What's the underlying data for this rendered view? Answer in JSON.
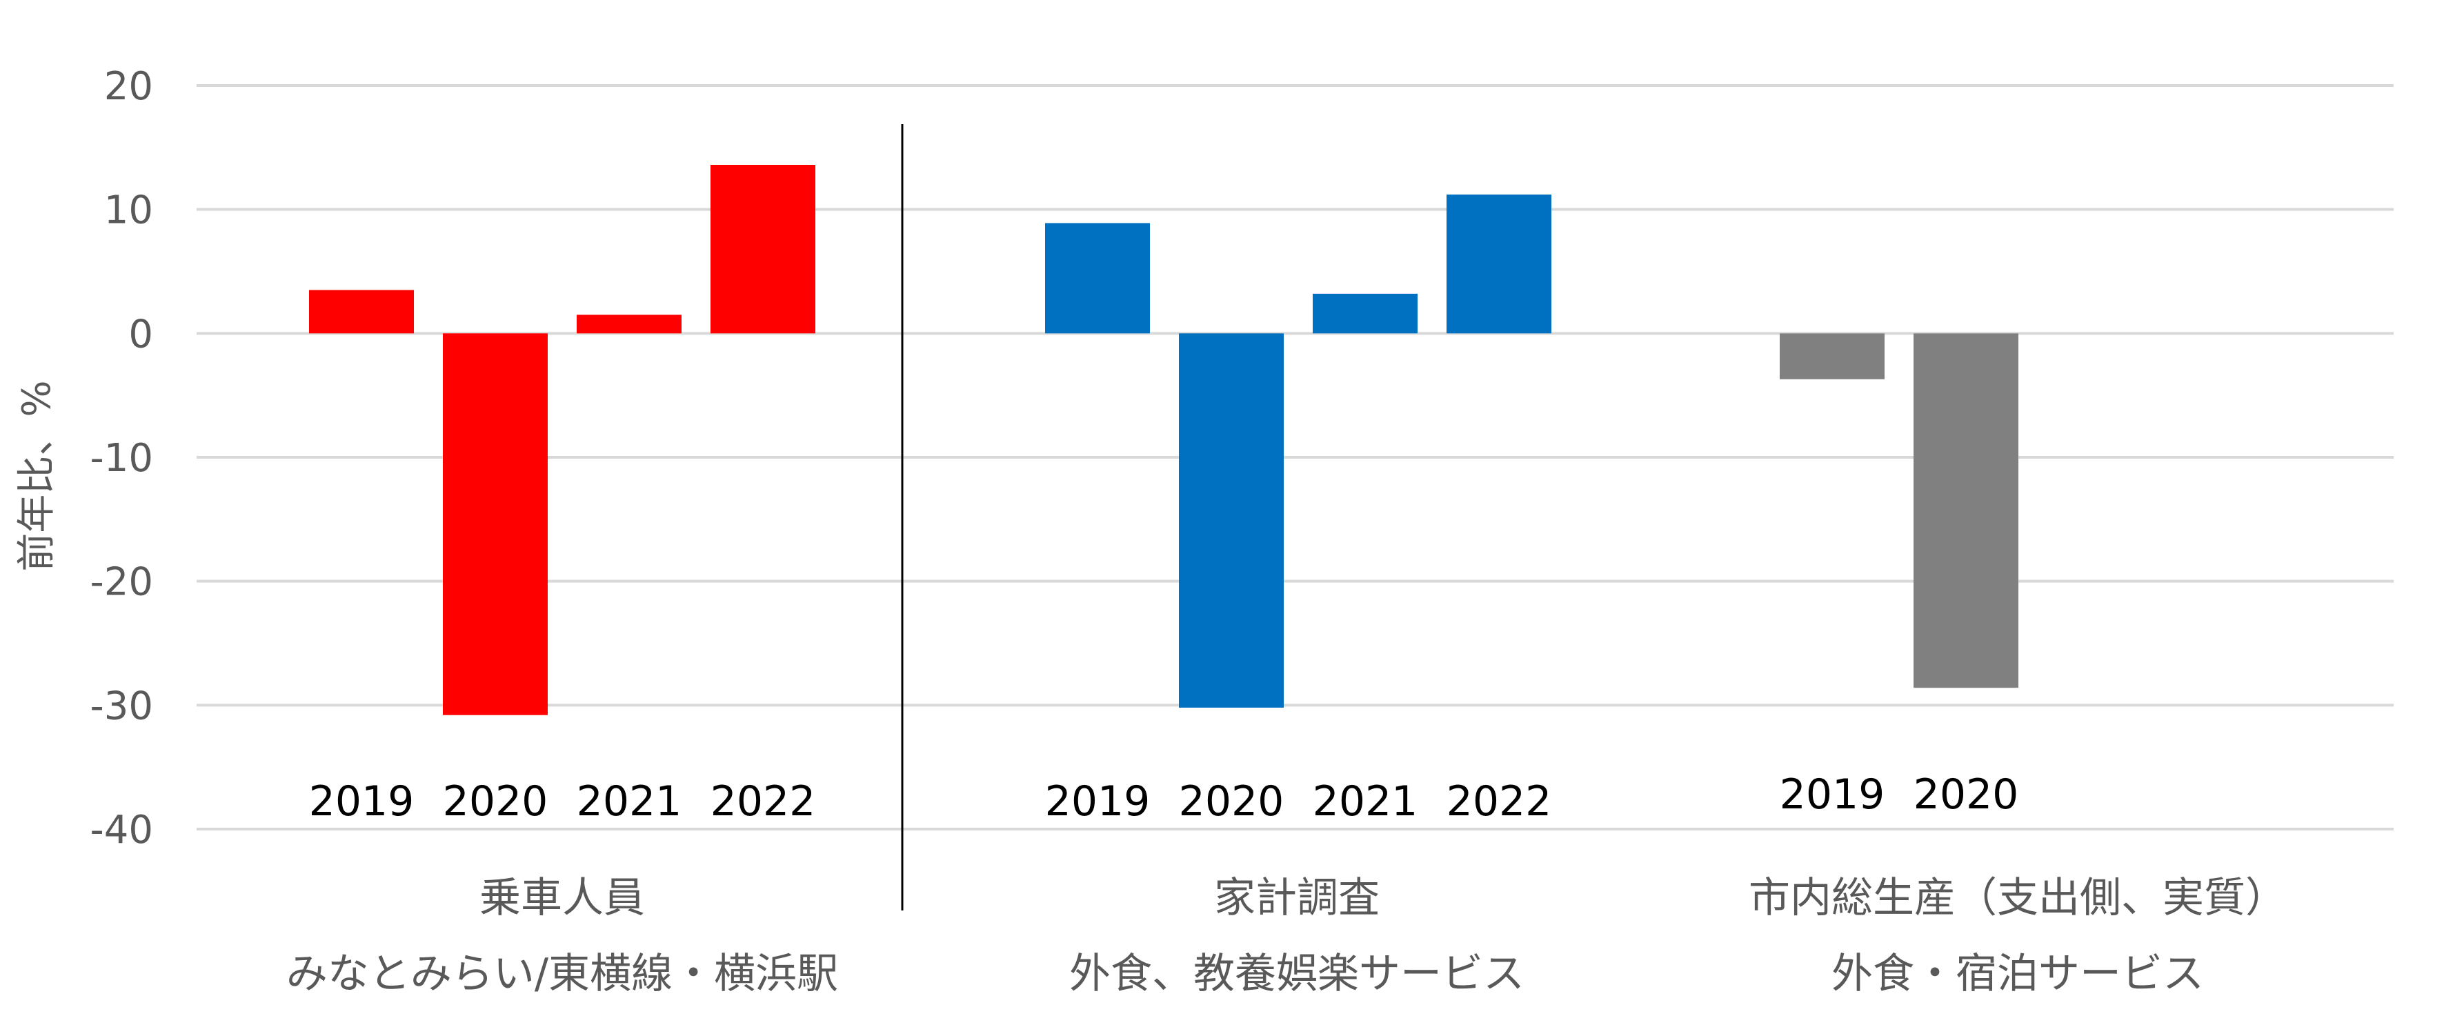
{
  "chart_data": {
    "type": "bar",
    "ylabel": "前年比、%",
    "ylim": [
      -40,
      20
    ],
    "yticks": [
      20,
      10,
      0,
      -10,
      -20,
      -30,
      -40
    ],
    "grid": true,
    "groups": [
      {
        "title_line1": "乗車人員",
        "title_line2": "みなとみらい/東横線・横浜駅",
        "color": "#ff0000",
        "categories": [
          "2019",
          "2020",
          "2021",
          "2022"
        ],
        "values": [
          3.5,
          -30.8,
          1.5,
          13.6
        ]
      },
      {
        "title_line1": "家計調査",
        "title_line2": "外食、教養娯楽サービス",
        "color": "#0070c0",
        "categories": [
          "2019",
          "2020",
          "2021",
          "2022"
        ],
        "values": [
          8.9,
          -30.2,
          3.2,
          11.2
        ]
      },
      {
        "title_line1": "市内総生産（支出側、実質）",
        "title_line2": "外食・宿泊サービス",
        "color": "#808080",
        "categories": [
          "2019",
          "2020"
        ],
        "values": [
          -3.7,
          -28.6
        ]
      }
    ]
  }
}
